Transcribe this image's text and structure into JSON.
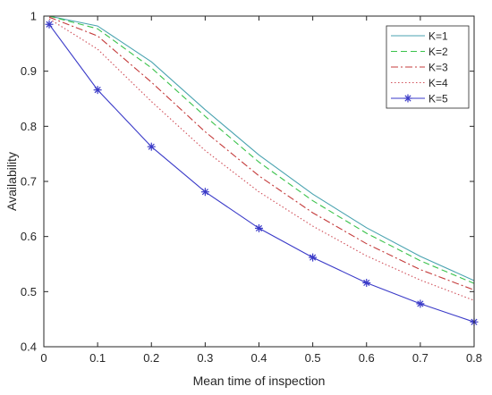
{
  "chart_data": {
    "type": "line",
    "title": "",
    "xlabel": "Mean time of inspection",
    "ylabel": "Availability",
    "xlim": [
      0,
      0.8
    ],
    "ylim": [
      0.4,
      1
    ],
    "xticks": [
      0,
      0.1,
      0.2,
      0.3,
      0.4,
      0.5,
      0.6,
      0.7,
      0.8
    ],
    "xtick_labels": [
      "0",
      "0.1",
      "0.2",
      "0.3",
      "0.4",
      "0.5",
      "0.6",
      "0.7",
      "0.8"
    ],
    "yticks": [
      0.4,
      0.5,
      0.6,
      0.7,
      0.8,
      0.9,
      1
    ],
    "ytick_labels": [
      "0.4",
      "0.5",
      "0.6",
      "0.7",
      "0.8",
      "0.9",
      "1"
    ],
    "grid": false,
    "legend_position": "top-right",
    "x": [
      0.01,
      0.1,
      0.2,
      0.3,
      0.4,
      0.5,
      0.6,
      0.7,
      0.8
    ],
    "series": [
      {
        "name": "K=1",
        "color": "#4aa3b0",
        "style": "solid",
        "marker": "none",
        "values": [
          1.0,
          0.982,
          0.917,
          0.83,
          0.748,
          0.677,
          0.616,
          0.564,
          0.52
        ]
      },
      {
        "name": "K=2",
        "color": "#39c24a",
        "style": "dashed",
        "marker": "none",
        "values": [
          1.0,
          0.977,
          0.906,
          0.818,
          0.735,
          0.665,
          0.606,
          0.556,
          0.515
        ]
      },
      {
        "name": "K=3",
        "color": "#c43b3b",
        "style": "dashdot",
        "marker": "none",
        "values": [
          0.998,
          0.964,
          0.88,
          0.79,
          0.71,
          0.643,
          0.587,
          0.54,
          0.503
        ]
      },
      {
        "name": "K=4",
        "color": "#d0505a",
        "style": "dotted",
        "marker": "none",
        "values": [
          0.995,
          0.94,
          0.845,
          0.756,
          0.681,
          0.619,
          0.565,
          0.521,
          0.484
        ]
      },
      {
        "name": "K=5",
        "color": "#3a3ac8",
        "style": "solid",
        "marker": "asterisk",
        "values": [
          0.985,
          0.866,
          0.763,
          0.681,
          0.615,
          0.562,
          0.516,
          0.478,
          0.445
        ]
      }
    ]
  }
}
